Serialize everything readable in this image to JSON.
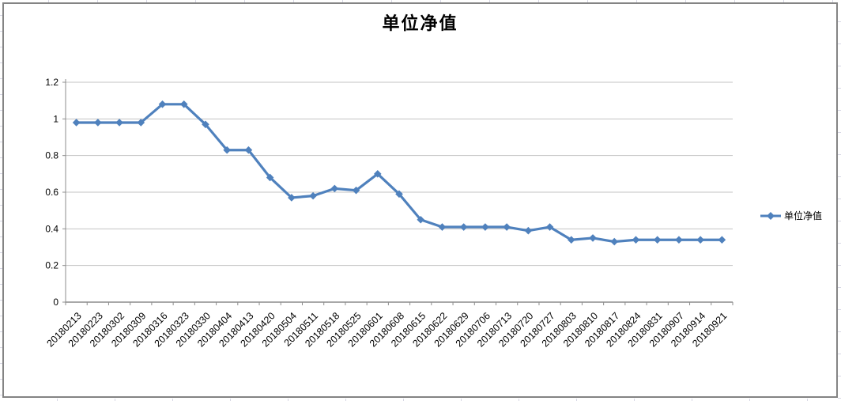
{
  "chart": {
    "title": "单位净值",
    "colors": {
      "line": "#4F81BD",
      "marker": "#4F81BD",
      "gridline": "#C3C3C3",
      "axis": "#8C8C8C",
      "frame_border": "#848484",
      "text": "#000000",
      "sheet_gridline": "#D7D7E4"
    }
  },
  "chart_data": {
    "type": "line",
    "title": "单位净值",
    "categories": [
      "20180213",
      "20180223",
      "20180302",
      "20180309",
      "20180316",
      "20180323",
      "20180330",
      "20180404",
      "20180413",
      "20180420",
      "20180504",
      "20180511",
      "20180518",
      "20180525",
      "20180601",
      "20180608",
      "20180615",
      "20180622",
      "20180629",
      "20180706",
      "20180713",
      "20180720",
      "20180727",
      "20180803",
      "20180810",
      "20180817",
      "20180824",
      "20180831",
      "20180907",
      "20180914",
      "20180921"
    ],
    "series": [
      {
        "name": "单位净值",
        "values": [
          0.98,
          0.98,
          0.98,
          0.98,
          1.08,
          1.08,
          0.97,
          0.83,
          0.83,
          0.68,
          0.57,
          0.58,
          0.62,
          0.61,
          0.7,
          0.59,
          0.45,
          0.41,
          0.41,
          0.41,
          0.41,
          0.39,
          0.41,
          0.34,
          0.35,
          0.33,
          0.34,
          0.34,
          0.34,
          0.34,
          0.34
        ]
      }
    ],
    "xlabel": "",
    "ylabel": "",
    "ylim": [
      0,
      1.2
    ],
    "ytick_labels": [
      "0",
      "0.2",
      "0.4",
      "0.6",
      "0.8",
      "1",
      "1.2"
    ],
    "grid": true,
    "legend_position": "right-middle",
    "marker": "diamond",
    "x_label_rotation_deg": 45
  }
}
